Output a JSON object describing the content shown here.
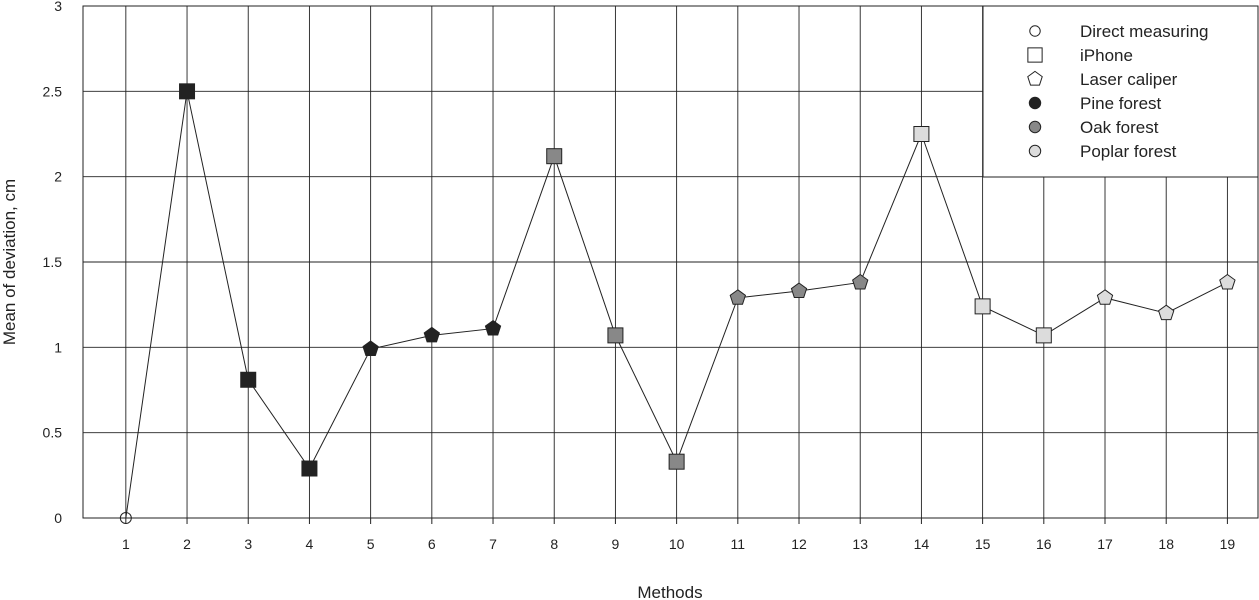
{
  "chart_data": {
    "type": "line",
    "xlabel": "Methods",
    "ylabel": "Mean of deviation, cm",
    "x": [
      1,
      2,
      3,
      4,
      5,
      6,
      7,
      8,
      9,
      10,
      11,
      12,
      13,
      14,
      15,
      16,
      17,
      18,
      19
    ],
    "xlim": [
      0.3,
      19.5
    ],
    "ylim": [
      0,
      3
    ],
    "yticks": [
      "0",
      "0.5",
      "1",
      "1.5",
      "2",
      "2.5",
      "3"
    ],
    "xticks": [
      "1",
      "2",
      "3",
      "4",
      "5",
      "6",
      "7",
      "8",
      "9",
      "10",
      "11",
      "12",
      "13",
      "14",
      "15",
      "16",
      "17",
      "18",
      "19"
    ],
    "grid": true,
    "legend_position": "top-right",
    "series": [
      {
        "values": [
          0,
          2.5,
          0.81,
          0.29,
          0.99,
          1.07,
          1.11,
          2.12,
          1.07,
          0.33,
          1.29,
          1.33,
          1.38,
          2.25,
          1.24,
          1.07,
          1.29,
          1.2,
          1.38
        ],
        "shapes": [
          "circle",
          "square",
          "square",
          "square",
          "pentagon",
          "pentagon",
          "pentagon",
          "square",
          "square",
          "square",
          "pentagon",
          "pentagon",
          "pentagon",
          "square",
          "square",
          "square",
          "pentagon",
          "pentagon",
          "pentagon"
        ],
        "fills": [
          "none",
          "#222222",
          "#222222",
          "#222222",
          "#222222",
          "#222222",
          "#222222",
          "#888888",
          "#888888",
          "#888888",
          "#888888",
          "#888888",
          "#888888",
          "#dcdcdc",
          "#dcdcdc",
          "#dcdcdc",
          "#dcdcdc",
          "#dcdcdc",
          "#dcdcdc"
        ]
      }
    ],
    "legend": [
      {
        "label": "Direct measuring",
        "shape": "circle",
        "fill": "none"
      },
      {
        "label": "iPhone",
        "shape": "square",
        "fill": "none"
      },
      {
        "label": "Laser caliper",
        "shape": "pentagon",
        "fill": "none"
      },
      {
        "label": "Pine forest",
        "shape": "dot",
        "fill": "#222222"
      },
      {
        "label": "Oak forest",
        "shape": "dot",
        "fill": "#888888"
      },
      {
        "label": "Poplar forest",
        "shape": "dot",
        "fill": "#dcdcdc"
      }
    ]
  }
}
